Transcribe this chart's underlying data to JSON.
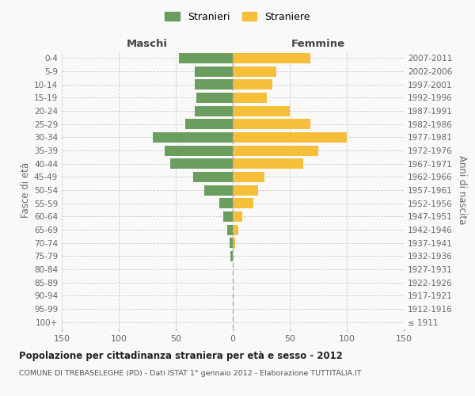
{
  "age_groups": [
    "100+",
    "95-99",
    "90-94",
    "85-89",
    "80-84",
    "75-79",
    "70-74",
    "65-69",
    "60-64",
    "55-59",
    "50-54",
    "45-49",
    "40-44",
    "35-39",
    "30-34",
    "25-29",
    "20-24",
    "15-19",
    "10-14",
    "5-9",
    "0-4"
  ],
  "birth_years": [
    "≤ 1911",
    "1912-1916",
    "1917-1921",
    "1922-1926",
    "1927-1931",
    "1932-1936",
    "1937-1941",
    "1942-1946",
    "1947-1951",
    "1952-1956",
    "1957-1961",
    "1962-1966",
    "1967-1971",
    "1972-1976",
    "1977-1981",
    "1982-1986",
    "1987-1991",
    "1992-1996",
    "1997-2001",
    "2002-2006",
    "2007-2011"
  ],
  "maschi": [
    0,
    0,
    0,
    0,
    0,
    2,
    3,
    5,
    8,
    12,
    25,
    35,
    55,
    60,
    70,
    42,
    33,
    32,
    33,
    33,
    47
  ],
  "femmine": [
    0,
    0,
    0,
    0,
    0,
    0,
    2,
    5,
    8,
    18,
    22,
    28,
    62,
    75,
    100,
    68,
    50,
    30,
    35,
    38,
    68
  ],
  "maschi_color": "#6b9e5e",
  "femmine_color": "#f5bf3a",
  "grid_color": "#cccccc",
  "title": "Popolazione per cittadinanza straniera per età e sesso - 2012",
  "subtitle": "COMUNE DI TREBASELEGHE (PD) - Dati ISTAT 1° gennaio 2012 - Elaborazione TUTTITALIA.IT",
  "xlabel_left": "Maschi",
  "xlabel_right": "Femmine",
  "ylabel_left": "Fasce di età",
  "ylabel_right": "Anni di nascita",
  "legend_maschi": "Stranieri",
  "legend_femmine": "Straniere",
  "xlim": 150,
  "background_color": "#f9f9f9"
}
